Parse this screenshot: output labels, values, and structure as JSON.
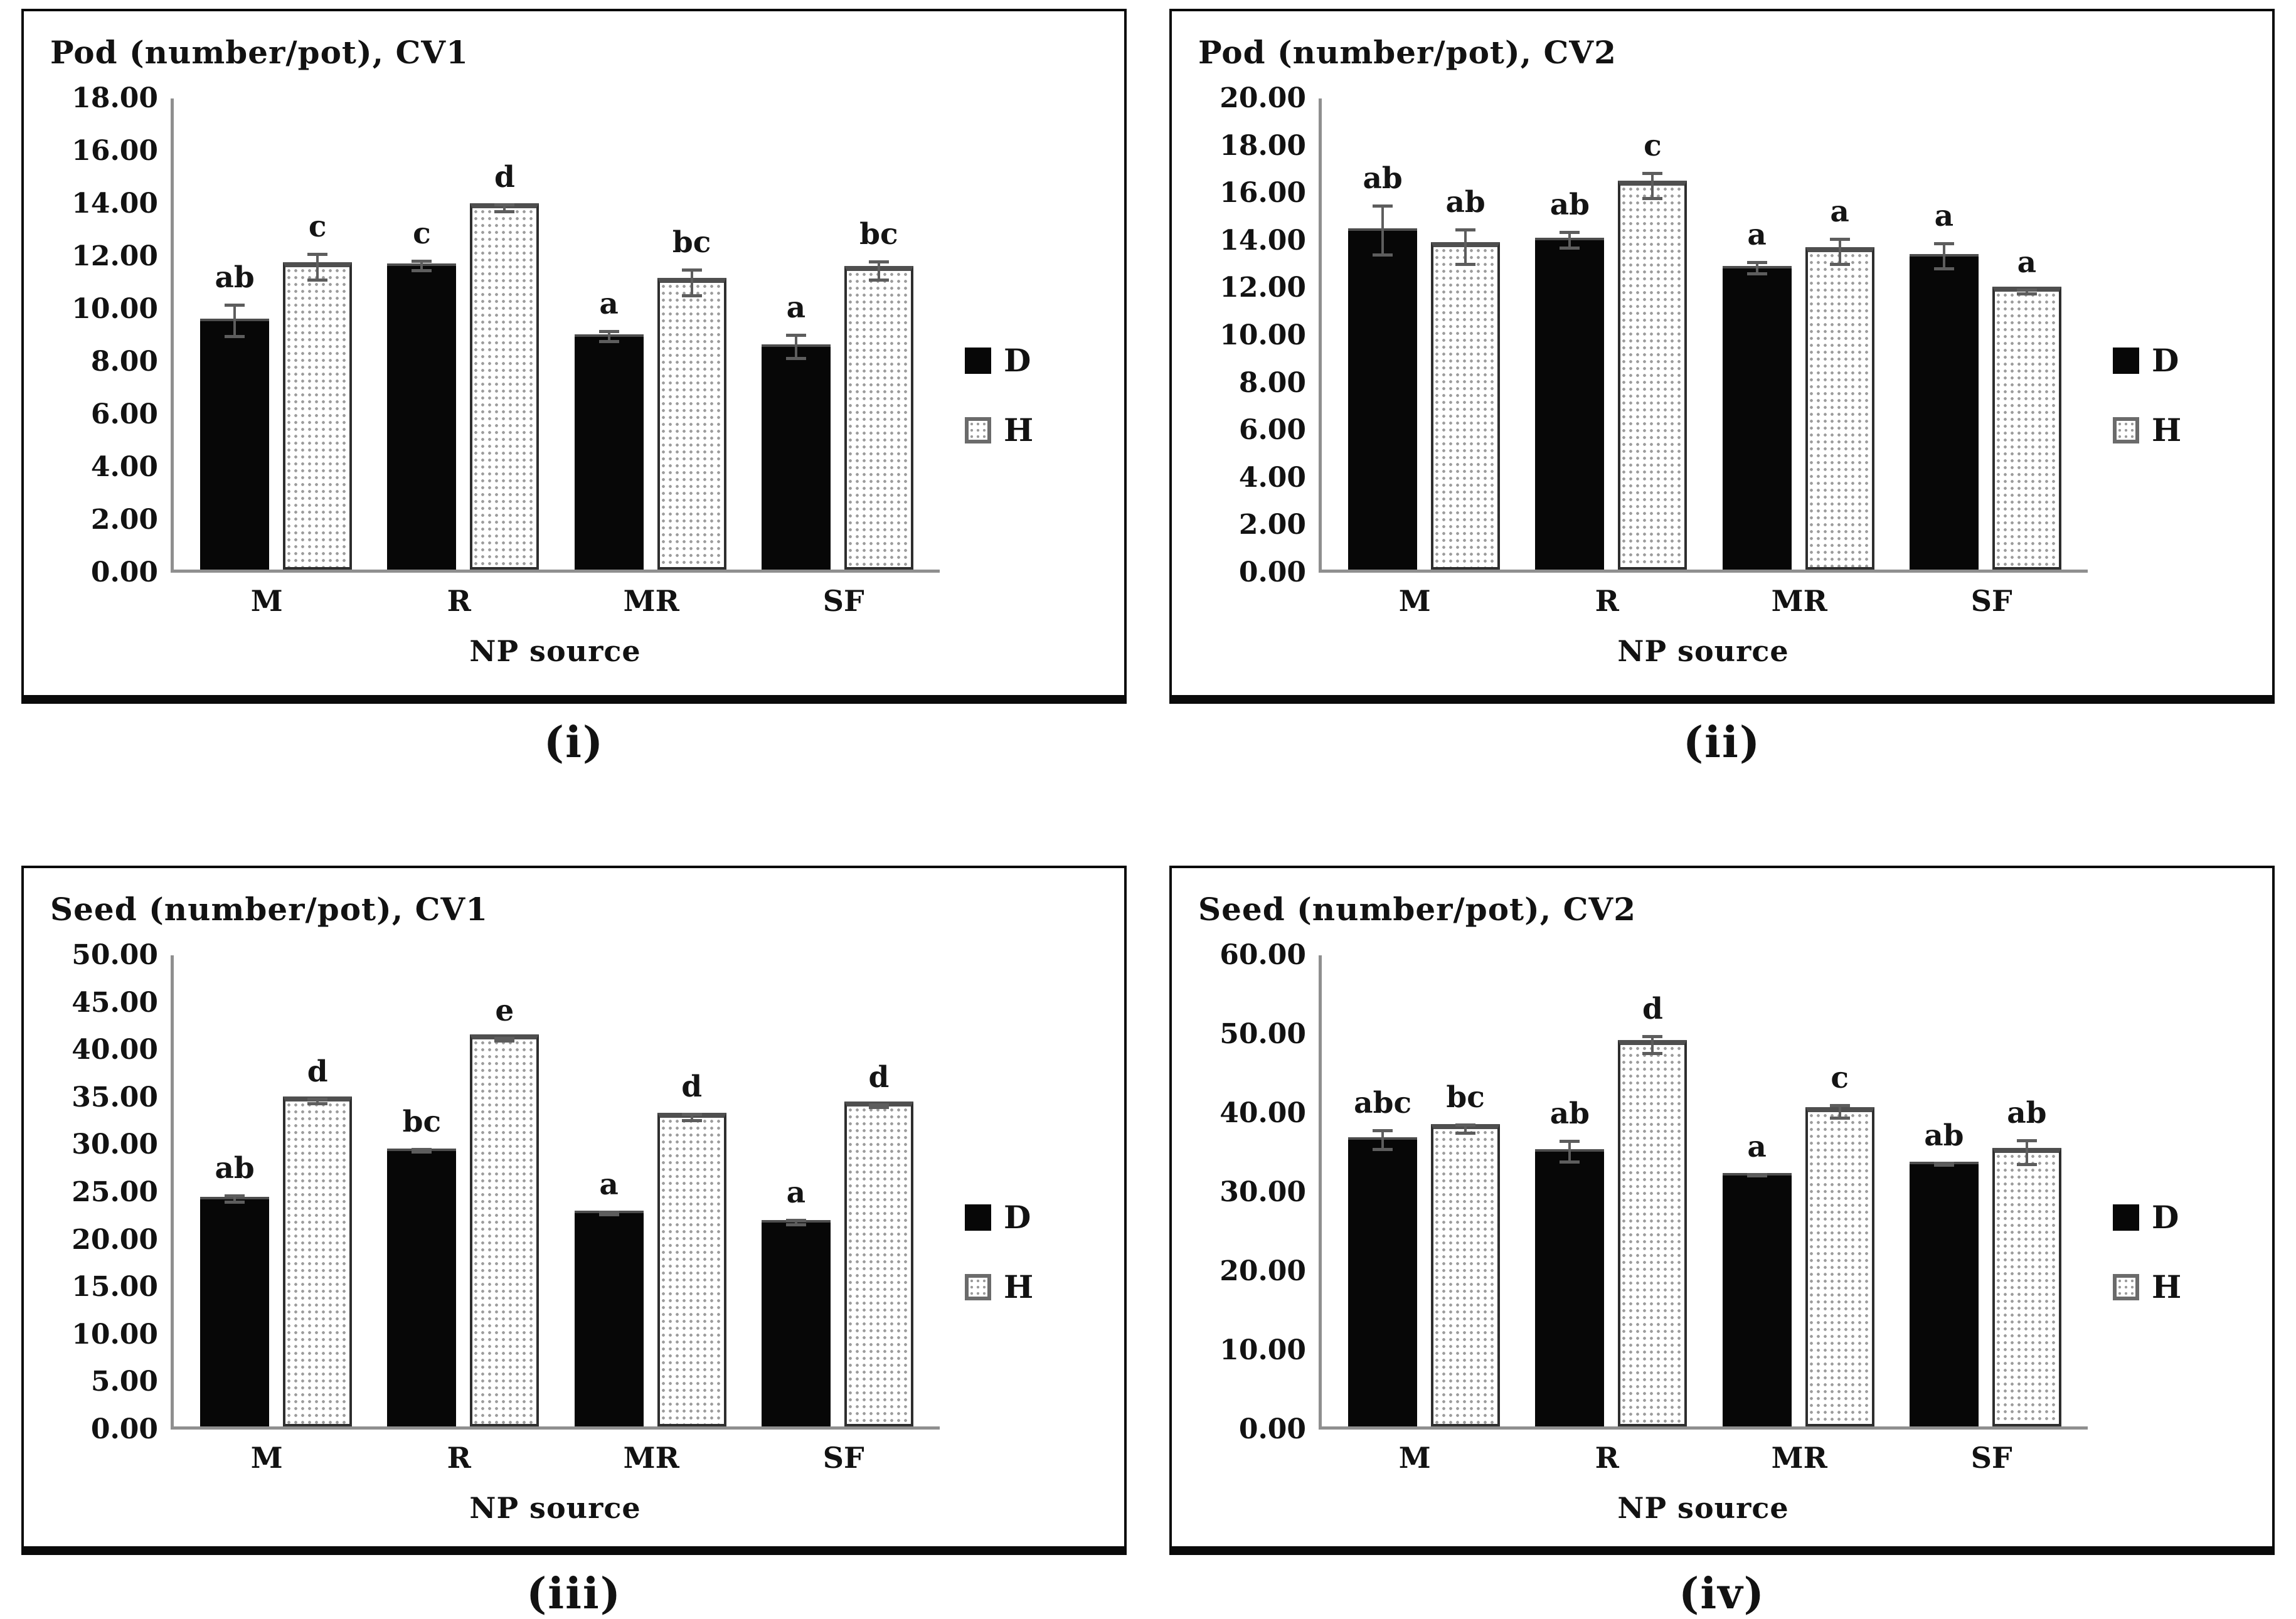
{
  "page": {
    "background": "#ffffff"
  },
  "colors": {
    "bar_d_fill": "#070707",
    "bar_h_fill": "#ffffff",
    "bar_h_dot": "#9b9b9b",
    "bar_h_border": "#2e2e2e",
    "axis_line": "#8f8f8f",
    "error_bar": "#5d5d5d",
    "text": "#121212",
    "panel_border": "#0a0a0a"
  },
  "chart_data": [
    {
      "type": "bar",
      "title": "Pod (number/pot), CV1",
      "caption": "(i)",
      "xlabel": "NP source",
      "ylabel": "",
      "categories": [
        "M",
        "R",
        "MR",
        "SF"
      ],
      "ylim": [
        0,
        18
      ],
      "ytick_step": 2,
      "yticks": [
        "18.00",
        "16.00",
        "14.00",
        "12.00",
        "10.00",
        "8.00",
        "6.00",
        "4.00",
        "2.00",
        "0.00"
      ],
      "grid": false,
      "legend_position": "right-center",
      "legend": [
        "D",
        "H"
      ],
      "series": [
        {
          "name": "D",
          "style": "solid-black",
          "values": [
            9.6,
            11.7,
            9.0,
            8.6
          ],
          "errors": [
            0.65,
            0.25,
            0.25,
            0.5
          ],
          "letters": [
            "ab",
            "c",
            "a",
            "a"
          ]
        },
        {
          "name": "H",
          "style": "dotted-white",
          "values": [
            11.75,
            14.0,
            11.15,
            11.6
          ],
          "errors": [
            0.55,
            0.2,
            0.55,
            0.4
          ],
          "letters": [
            "c",
            "d",
            "bc",
            "bc"
          ]
        }
      ]
    },
    {
      "type": "bar",
      "title": "Pod (number/pot), CV2",
      "caption": "(ii)",
      "xlabel": "NP source",
      "ylabel": "",
      "categories": [
        "M",
        "R",
        "MR",
        "SF"
      ],
      "ylim": [
        0,
        20
      ],
      "ytick_step": 2,
      "yticks": [
        "20.00",
        "18.00",
        "16.00",
        "14.00",
        "12.00",
        "10.00",
        "8.00",
        "6.00",
        "4.00",
        "2.00",
        "0.00"
      ],
      "grid": false,
      "legend_position": "right-center",
      "legend": [
        "D",
        "H"
      ],
      "series": [
        {
          "name": "D",
          "style": "solid-black",
          "values": [
            14.5,
            14.1,
            12.9,
            13.4
          ],
          "errors": [
            1.1,
            0.4,
            0.3,
            0.6
          ],
          "letters": [
            "ab",
            "ab",
            "a",
            "a"
          ]
        },
        {
          "name": "H",
          "style": "dotted-white",
          "values": [
            13.9,
            16.5,
            13.7,
            12.0
          ],
          "errors": [
            0.8,
            0.6,
            0.6,
            0.15
          ],
          "letters": [
            "ab",
            "c",
            "a",
            "a"
          ]
        }
      ]
    },
    {
      "type": "bar",
      "title": "Seed (number/pot), CV1",
      "caption": "(iii)",
      "xlabel": "NP source",
      "ylabel": "",
      "categories": [
        "M",
        "R",
        "MR",
        "SF"
      ],
      "ylim": [
        0,
        50
      ],
      "ytick_step": 5,
      "yticks": [
        "50.00",
        "45.00",
        "40.00",
        "35.00",
        "30.00",
        "25.00",
        "20.00",
        "15.00",
        "10.00",
        "5.00",
        "0.00"
      ],
      "grid": false,
      "legend_position": "right-center",
      "legend": [
        "D",
        "H"
      ],
      "series": [
        {
          "name": "D",
          "style": "solid-black",
          "values": [
            24.4,
            29.5,
            22.9,
            21.9
          ],
          "errors": [
            0.5,
            0.3,
            0.3,
            0.4
          ],
          "letters": [
            "ab",
            "bc",
            "a",
            "a"
          ]
        },
        {
          "name": "H",
          "style": "dotted-white",
          "values": [
            35.0,
            41.6,
            33.3,
            34.5
          ],
          "errors": [
            0.4,
            0.3,
            0.5,
            0.3
          ],
          "letters": [
            "d",
            "e",
            "d",
            "d"
          ]
        }
      ]
    },
    {
      "type": "bar",
      "title": "Seed (number/pot), CV2",
      "caption": "(iv)",
      "xlabel": "NP source",
      "ylabel": "",
      "categories": [
        "M",
        "R",
        "MR",
        "SF"
      ],
      "ylim": [
        0,
        60
      ],
      "ytick_step": 10,
      "yticks": [
        "60.00",
        "50.00",
        "40.00",
        "30.00",
        "20.00",
        "10.00",
        "0.00"
      ],
      "grid": false,
      "legend_position": "right-center",
      "legend": [
        "D",
        "H"
      ],
      "series": [
        {
          "name": "D",
          "style": "solid-black",
          "values": [
            36.8,
            35.3,
            32.3,
            33.7
          ],
          "errors": [
            1.4,
            1.5,
            0.3,
            0.3
          ],
          "letters": [
            "abc",
            "ab",
            "a",
            "ab"
          ]
        },
        {
          "name": "H",
          "style": "dotted-white",
          "values": [
            38.5,
            49.2,
            40.7,
            35.5
          ],
          "errors": [
            0.7,
            1.3,
            1.0,
            1.7
          ],
          "letters": [
            "bc",
            "d",
            "c",
            "ab"
          ]
        }
      ]
    }
  ]
}
